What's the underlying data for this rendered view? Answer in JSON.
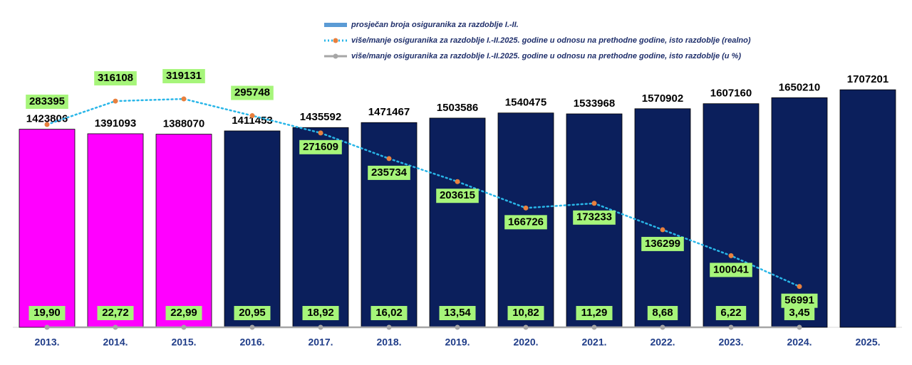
{
  "chart_data": {
    "type": "bar",
    "categories": [
      "2013.",
      "2014.",
      "2015.",
      "2016.",
      "2017.",
      "2018.",
      "2019.",
      "2020.",
      "2021.",
      "2022.",
      "2023.",
      "2024.",
      "2025."
    ],
    "ylim": [
      0,
      1800000
    ],
    "y2lim": [
      0,
      350000
    ],
    "series": [
      {
        "name": "prosječan broja osiguranika za razdoblje I.-II.",
        "type": "bar",
        "color": "#5b9bd5",
        "colors": [
          "#ff00ff",
          "#ff00ff",
          "#ff00ff",
          "#0b1f5c",
          "#0b1f5c",
          "#0b1f5c",
          "#0b1f5c",
          "#0b1f5c",
          "#0b1f5c",
          "#0b1f5c",
          "#0b1f5c",
          "#0b1f5c",
          "#0b1f5c"
        ],
        "values": [
          1423806,
          1391093,
          1388070,
          1411453,
          1435592,
          1471467,
          1503586,
          1540475,
          1533968,
          1570902,
          1607160,
          1650210,
          1707201
        ]
      },
      {
        "name": "više/manje osiguranika za razdoblje I.-II.2025. godine u odnosu na prethodne godine, isto razdoblje (realno)",
        "type": "line",
        "axis": "y2",
        "color": "#29b6e8",
        "marker_color": "#e8803e",
        "dash": "dotted",
        "values": [
          283395,
          316108,
          319131,
          295748,
          271609,
          235734,
          203615,
          166726,
          173233,
          136299,
          100041,
          56991,
          null
        ]
      },
      {
        "name": "više/manje osiguranika za razdoblje I.-II.2025. godine u odnosu na prethodne godine, isto razdoblje (u %)",
        "type": "line",
        "color": "#a6a6a6",
        "marker_color": "#a6a6a6",
        "values": [
          19.9,
          22.72,
          22.99,
          20.95,
          18.92,
          16.02,
          13.54,
          10.82,
          11.29,
          8.68,
          6.22,
          3.45,
          null
        ],
        "value_labels": [
          "19,90",
          "22,72",
          "22,99",
          "20,95",
          "18,92",
          "16,02",
          "13,54",
          "10,82",
          "11,29",
          "8,68",
          "6,22",
          "3,45",
          null
        ]
      }
    ]
  }
}
